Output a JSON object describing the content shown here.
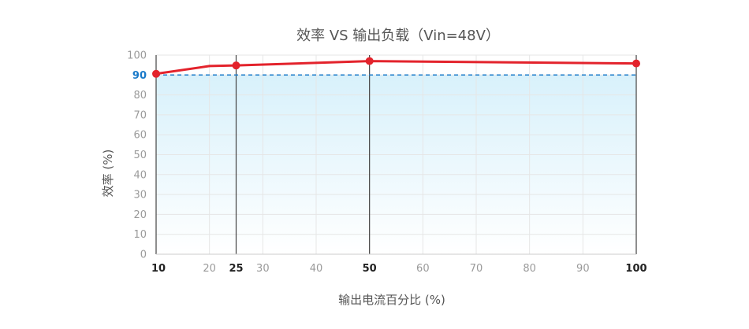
{
  "chart_data": {
    "type": "line",
    "title": "效率 VS 输出负载（Vin=48V）",
    "xlabel": "输出电流百分比 (%)",
    "ylabel": "效率 (%)",
    "xlim": [
      10,
      100
    ],
    "ylim": [
      0,
      100
    ],
    "x_ticks": [
      10,
      20,
      25,
      30,
      40,
      50,
      60,
      70,
      80,
      90,
      100
    ],
    "x_ticks_emphasized": [
      10,
      25,
      50,
      100
    ],
    "y_ticks": [
      0,
      10,
      20,
      30,
      40,
      50,
      60,
      70,
      80,
      90,
      100
    ],
    "grid": true,
    "series": [
      {
        "color": "#e3232c",
        "x": [
          10,
          20,
          25,
          50,
          100
        ],
        "y": [
          90.6,
          94.5,
          94.8,
          97.0,
          95.8
        ],
        "markers_at": [
          10,
          25,
          50,
          100
        ]
      }
    ],
    "reference_line": {
      "y": 90,
      "label": "90",
      "color": "#1a7ac9",
      "style": "dashed"
    },
    "vertical_lines_at": [
      25,
      50,
      100
    ],
    "fill_under": {
      "from_color": "#d8f1fb",
      "to_color": "#ffffff",
      "below_y": 90
    }
  }
}
